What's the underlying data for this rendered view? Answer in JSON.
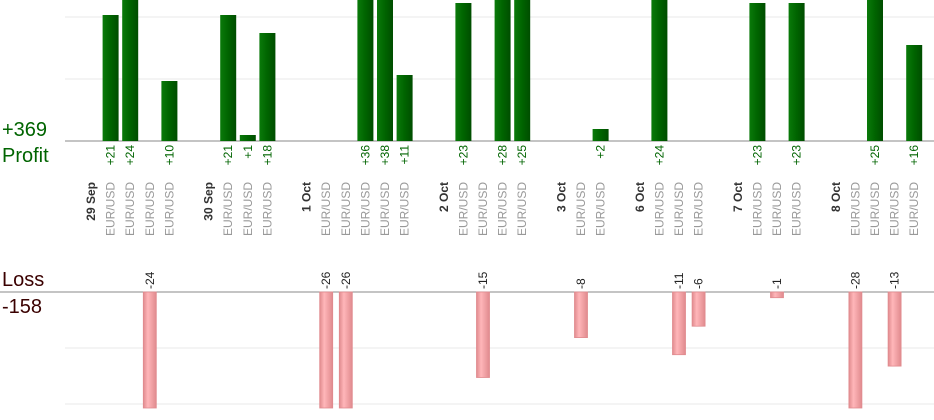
{
  "summary": {
    "profit_total": "+369",
    "profit_label": "Profit",
    "loss_label": "Loss",
    "loss_total": "-158"
  },
  "colors": {
    "profit_bar": "#006400",
    "profit_text": "#006400",
    "loss_bar": "#ffb6b9",
    "loss_bar_edge": "#e08a8e",
    "loss_text": "#3a0000",
    "grid": "#e8e8e8",
    "baseline": "#888888",
    "pair_text": "#999999",
    "date_text": "#333333"
  },
  "chart_data": {
    "type": "bar",
    "profit_series": [
      {
        "x": 1,
        "label": "+21",
        "value": 21
      },
      {
        "x": 2,
        "label": "+24",
        "value": 24
      },
      {
        "x": 4,
        "label": "+10",
        "value": 10
      },
      {
        "x": 7,
        "label": "+21",
        "value": 21
      },
      {
        "x": 8,
        "label": "+1",
        "value": 1
      },
      {
        "x": 9,
        "label": "+18",
        "value": 18
      },
      {
        "x": 14,
        "label": "+36",
        "value": 36
      },
      {
        "x": 15,
        "label": "+38",
        "value": 38
      },
      {
        "x": 16,
        "label": "+11",
        "value": 11
      },
      {
        "x": 19,
        "label": "+23",
        "value": 23
      },
      {
        "x": 21,
        "label": "+28",
        "value": 28
      },
      {
        "x": 22,
        "label": "+25",
        "value": 25
      },
      {
        "x": 26,
        "label": "+2",
        "value": 2
      },
      {
        "x": 29,
        "label": "+24",
        "value": 24
      },
      {
        "x": 34,
        "label": "+23",
        "value": 23
      },
      {
        "x": 36,
        "label": "+23",
        "value": 23
      },
      {
        "x": 40,
        "label": "+25",
        "value": 25
      },
      {
        "x": 42,
        "label": "+16",
        "value": 16
      }
    ],
    "loss_series": [
      {
        "x": 3,
        "label": "-24",
        "value": -24
      },
      {
        "x": 12,
        "label": "-26",
        "value": -26
      },
      {
        "x": 13,
        "label": "-26",
        "value": -26
      },
      {
        "x": 20,
        "label": "-15",
        "value": -15
      },
      {
        "x": 25,
        "label": "-8",
        "value": -8
      },
      {
        "x": 30,
        "label": "-11",
        "value": -11
      },
      {
        "x": 31,
        "label": "-6",
        "value": -6
      },
      {
        "x": 35,
        "label": "-1",
        "value": -1
      },
      {
        "x": 39,
        "label": "-28",
        "value": -28
      },
      {
        "x": 41,
        "label": "-13",
        "value": -13
      }
    ],
    "x_labels": [
      {
        "x": 0,
        "text": "29 Sep",
        "kind": "date"
      },
      {
        "x": 1,
        "text": "EUR/USD",
        "kind": "pair"
      },
      {
        "x": 2,
        "text": "EUR/USD",
        "kind": "pair"
      },
      {
        "x": 3,
        "text": "EUR/USD",
        "kind": "pair"
      },
      {
        "x": 4,
        "text": "EUR/USD",
        "kind": "pair"
      },
      {
        "x": 6,
        "text": "30 Sep",
        "kind": "date"
      },
      {
        "x": 7,
        "text": "EUR/USD",
        "kind": "pair"
      },
      {
        "x": 8,
        "text": "EUR/USD",
        "kind": "pair"
      },
      {
        "x": 9,
        "text": "EUR/USD",
        "kind": "pair"
      },
      {
        "x": 11,
        "text": "1 Oct",
        "kind": "date"
      },
      {
        "x": 12,
        "text": "EUR/USD",
        "kind": "pair"
      },
      {
        "x": 13,
        "text": "EUR/USD",
        "kind": "pair"
      },
      {
        "x": 14,
        "text": "EUR/USD",
        "kind": "pair"
      },
      {
        "x": 15,
        "text": "EUR/USD",
        "kind": "pair"
      },
      {
        "x": 16,
        "text": "EUR/USD",
        "kind": "pair"
      },
      {
        "x": 18,
        "text": "2 Oct",
        "kind": "date"
      },
      {
        "x": 19,
        "text": "EUR/USD",
        "kind": "pair"
      },
      {
        "x": 20,
        "text": "EUR/USD",
        "kind": "pair"
      },
      {
        "x": 21,
        "text": "EUR/USD",
        "kind": "pair"
      },
      {
        "x": 22,
        "text": "EUR/USD",
        "kind": "pair"
      },
      {
        "x": 24,
        "text": "3 Oct",
        "kind": "date"
      },
      {
        "x": 25,
        "text": "EUR/USD",
        "kind": "pair"
      },
      {
        "x": 26,
        "text": "EUR/USD",
        "kind": "pair"
      },
      {
        "x": 28,
        "text": "6 Oct",
        "kind": "date"
      },
      {
        "x": 29,
        "text": "EUR/USD",
        "kind": "pair"
      },
      {
        "x": 30,
        "text": "EUR/USD",
        "kind": "pair"
      },
      {
        "x": 31,
        "text": "EUR/USD",
        "kind": "pair"
      },
      {
        "x": 33,
        "text": "7 Oct",
        "kind": "date"
      },
      {
        "x": 34,
        "text": "EUR/USD",
        "kind": "pair"
      },
      {
        "x": 35,
        "text": "EUR/USD",
        "kind": "pair"
      },
      {
        "x": 36,
        "text": "EUR/USD",
        "kind": "pair"
      },
      {
        "x": 38,
        "text": "8 Oct",
        "kind": "date"
      },
      {
        "x": 39,
        "text": "EUR/USD",
        "kind": "pair"
      },
      {
        "x": 40,
        "text": "EUR/USD",
        "kind": "pair"
      },
      {
        "x": 41,
        "text": "EUR/USD",
        "kind": "pair"
      },
      {
        "x": 42,
        "text": "EUR/USD",
        "kind": "pair"
      }
    ],
    "profit_ylim": [
      0,
      22
    ],
    "loss_ylim": [
      -20,
      0
    ],
    "grid": true
  }
}
